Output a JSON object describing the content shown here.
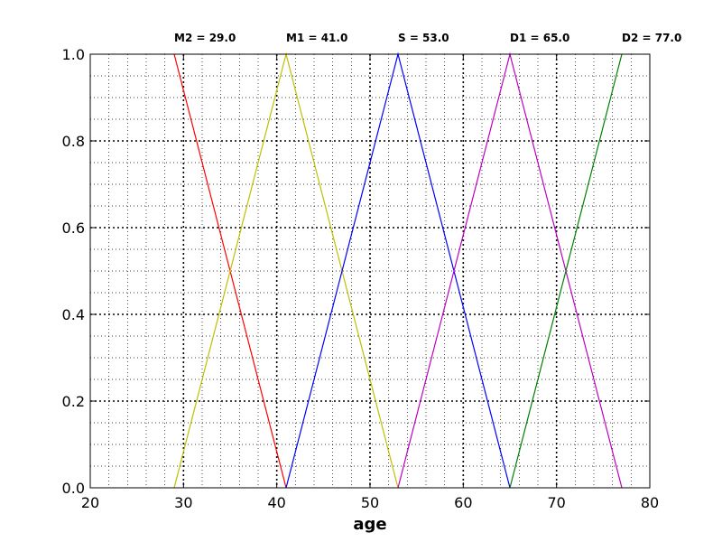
{
  "chart_data": {
    "type": "line",
    "title": "",
    "xlabel": "age",
    "ylabel": "",
    "xlim": [
      20,
      80
    ],
    "ylim": [
      0,
      1
    ],
    "x_ticks": [
      20,
      30,
      40,
      50,
      60,
      70,
      80
    ],
    "x_tick_labels": [
      "20",
      "30",
      "40",
      "50",
      "60",
      "70",
      "80"
    ],
    "y_ticks": [
      0,
      0.2,
      0.4,
      0.6,
      0.8,
      1.0
    ],
    "y_tick_labels": [
      "0.0",
      "0.2",
      "0.4",
      "0.6",
      "0.8",
      "1.0"
    ],
    "x_minor_step": 2,
    "y_minor_step": 0.05,
    "grid": true,
    "series": [
      {
        "color": "#ff0000",
        "x": [
          29,
          41
        ],
        "y": [
          1,
          0
        ]
      },
      {
        "color": "#bfbf00",
        "x": [
          29,
          41,
          53
        ],
        "y": [
          0,
          1,
          0
        ]
      },
      {
        "color": "#0000ff",
        "x": [
          41,
          53,
          65
        ],
        "y": [
          0,
          1,
          0
        ]
      },
      {
        "color": "#bf00bf",
        "x": [
          53,
          65,
          77
        ],
        "y": [
          0,
          1,
          0
        ]
      },
      {
        "color": "#008000",
        "x": [
          65,
          77
        ],
        "y": [
          0,
          1
        ]
      }
    ],
    "annotations": [
      {
        "text": "M2 = 29.0",
        "x": 29
      },
      {
        "text": "M1 = 41.0",
        "x": 41
      },
      {
        "text": "S = 53.0",
        "x": 53
      },
      {
        "text": "D1 = 65.0",
        "x": 65
      },
      {
        "text": "D2 = 77.0",
        "x": 77
      }
    ]
  }
}
